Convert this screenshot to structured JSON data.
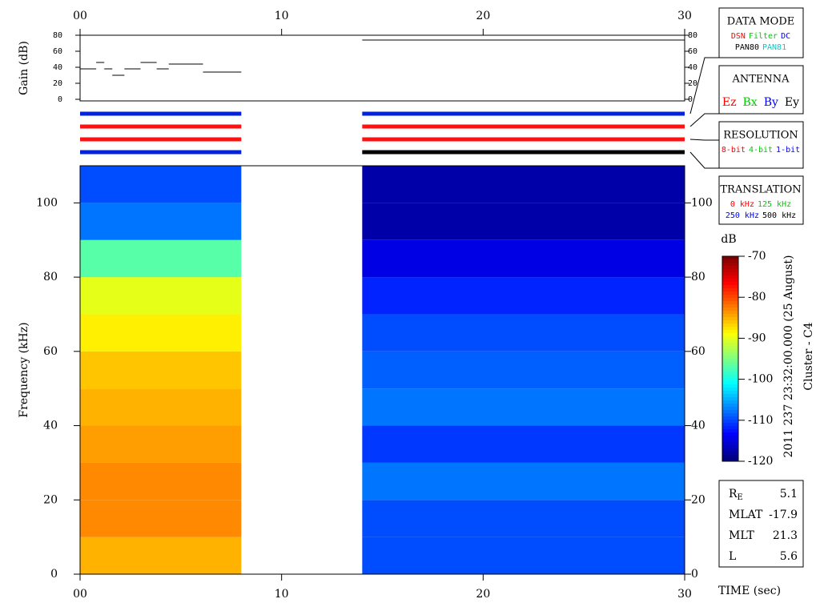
{
  "chart_data": {
    "type": "spectrogram",
    "xlabel": "TIME (sec)",
    "xlim": [
      0,
      30
    ],
    "xticks": [
      {
        "value": 0,
        "label": "00"
      },
      10,
      20,
      30
    ],
    "ylabel": "Frequency (kHz)",
    "ylim": [
      0,
      110
    ],
    "yticks": [
      0,
      20,
      40,
      60,
      80,
      100
    ],
    "freq_bins": [
      0,
      10,
      20,
      30,
      40,
      50,
      60,
      70,
      80,
      90,
      100,
      110
    ],
    "blocks": [
      {
        "t": [
          0,
          8
        ],
        "levels": [
          -85,
          -83,
          -83,
          -84,
          -85,
          -86,
          -88,
          -90,
          -97,
          -108,
          -110
        ]
      },
      {
        "t": [
          14,
          30
        ],
        "levels": [
          -110,
          -110,
          -108,
          -111,
          -108,
          -109,
          -110,
          -112,
          -115,
          -118,
          -118
        ]
      }
    ],
    "gain": {
      "ylabel": "Gain (dB)",
      "ylim": [
        0,
        80
      ],
      "yticks": [
        0,
        20,
        40,
        60,
        80
      ],
      "series": [
        {
          "edges": [
            0,
            0.8,
            1.2,
            1.6,
            2.2,
            3,
            3.8,
            4.4,
            5.6,
            6.1,
            8
          ],
          "values": [
            38,
            46,
            38,
            30,
            38,
            46,
            38,
            44,
            44,
            34
          ]
        },
        {
          "edges": [
            14,
            30
          ],
          "values": [
            74
          ]
        }
      ]
    },
    "mode_rows": [
      {
        "t": [
          0,
          8
        ],
        "colors": [
          "#0022dd",
          "#ff1111",
          "#ff1111",
          "#0022dd"
        ]
      },
      {
        "t": [
          14,
          30
        ],
        "colors": [
          "#0022dd",
          "#ff1111",
          "#ff1111",
          "#000000"
        ]
      }
    ],
    "colorbar": {
      "label": "dB",
      "lim": [
        -120,
        -70
      ],
      "ticks": [
        -70,
        -80,
        -90,
        -100,
        -110,
        -120
      ]
    },
    "date_label": "2011 237 23:32:00.000 (25 August)",
    "spacecraft": "Cluster - C4",
    "legends": [
      {
        "title": "DATA MODE",
        "rows": [
          [
            {
              "text": "DSN",
              "color": "#ff0000"
            },
            {
              "text": "Filter",
              "color": "#00cc00"
            },
            {
              "text": "DC",
              "color": "#0000ff"
            }
          ],
          [
            {
              "text": "PAN80",
              "color": "#000000"
            },
            {
              "text": "PAN81",
              "color": "#00cccc"
            }
          ]
        ]
      },
      {
        "title": "ANTENNA",
        "rows": [
          [
            {
              "text": "Ez",
              "color": "#ff0000"
            },
            {
              "text": "Bx",
              "color": "#00cc00"
            },
            {
              "text": "By",
              "color": "#0000ff"
            },
            {
              "text": "Ey",
              "color": "#000000"
            }
          ]
        ]
      },
      {
        "title": "RESOLUTION",
        "rows": [
          [
            {
              "text": "8-bit",
              "color": "#ff0000"
            },
            {
              "text": "4-bit",
              "color": "#00cc00"
            },
            {
              "text": "1-bit",
              "color": "#0000ff"
            }
          ]
        ]
      },
      {
        "title": "TRANSLATION",
        "rows": [
          [
            {
              "text": "0 kHz",
              "color": "#ff0000"
            },
            {
              "text": "125 kHz",
              "color": "#00cc00"
            }
          ],
          [
            {
              "text": "250 kHz",
              "color": "#0000ff"
            },
            {
              "text": "500 kHz",
              "color": "#000000"
            }
          ]
        ]
      }
    ],
    "params": [
      {
        "name": "R",
        "sub": "E",
        "value": 5.1
      },
      {
        "name": "MLAT",
        "value": -17.9
      },
      {
        "name": "MLT",
        "value": 21.3
      },
      {
        "name": "L",
        "value": 5.6
      }
    ]
  }
}
